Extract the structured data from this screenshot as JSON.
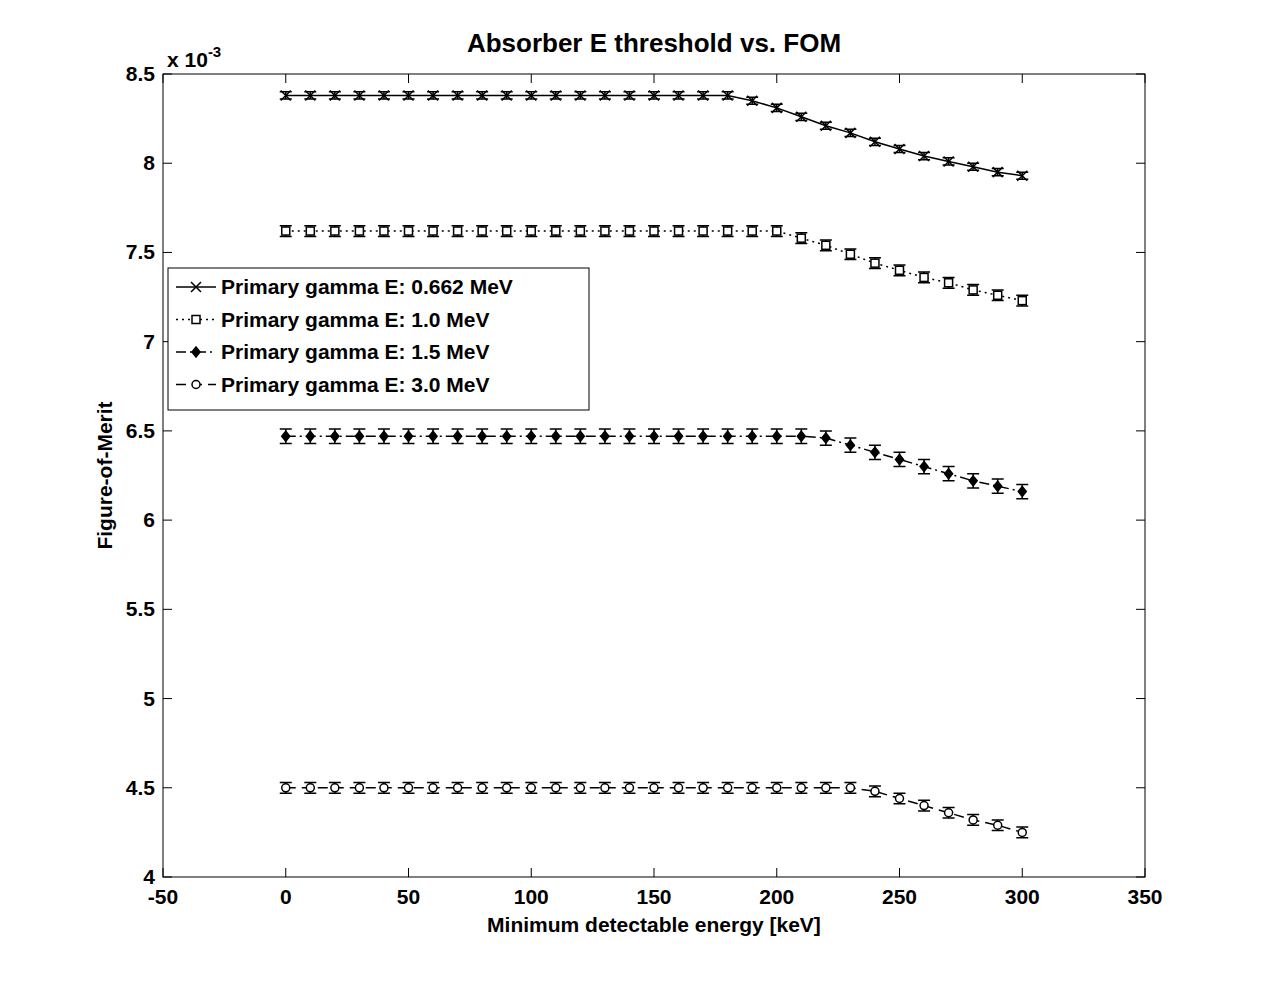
{
  "chart_data": {
    "type": "line",
    "title": "Absorber E threshold vs. FOM",
    "x_label": "Minimum detectable energy [keV]",
    "y_label": "Figure-of-Merit",
    "annotations": [
      {
        "text": "x 10",
        "superscript": "-3"
      }
    ],
    "x": [
      0,
      10,
      20,
      30,
      40,
      50,
      60,
      70,
      80,
      90,
      100,
      110,
      120,
      130,
      140,
      150,
      160,
      170,
      180,
      190,
      200,
      210,
      220,
      230,
      240,
      250,
      260,
      270,
      280,
      290,
      300
    ],
    "xlim": [
      -50,
      350
    ],
    "xticks": [
      -50,
      0,
      50,
      100,
      150,
      200,
      250,
      300,
      350
    ],
    "ylim": [
      4,
      8.5
    ],
    "yticks": [
      4,
      4.5,
      5,
      5.5,
      6,
      6.5,
      7,
      7.5,
      8,
      8.5
    ],
    "legend": "left",
    "grid": false,
    "series": [
      {
        "name": "Primary gamma E: 0.662 MeV",
        "color": "#000000",
        "marker": "x",
        "line_style": "solid",
        "values": [
          8.38,
          8.38,
          8.38,
          8.38,
          8.38,
          8.38,
          8.38,
          8.38,
          8.38,
          8.38,
          8.38,
          8.38,
          8.38,
          8.38,
          8.38,
          8.38,
          8.38,
          8.38,
          8.38,
          8.35,
          8.31,
          8.26,
          8.21,
          8.17,
          8.12,
          8.08,
          8.04,
          8.01,
          7.98,
          7.95,
          7.93
        ],
        "errors": [
          0.02,
          0.02,
          0.02,
          0.02,
          0.02,
          0.02,
          0.02,
          0.02,
          0.02,
          0.02,
          0.02,
          0.02,
          0.02,
          0.02,
          0.02,
          0.02,
          0.02,
          0.02,
          0.02,
          0.02,
          0.02,
          0.02,
          0.02,
          0.02,
          0.02,
          0.02,
          0.02,
          0.02,
          0.02,
          0.02,
          0.02
        ]
      },
      {
        "name": "Primary gamma E: 1.0 MeV",
        "color": "#000000",
        "marker": "square",
        "line_style": "dotted",
        "values": [
          7.62,
          7.62,
          7.62,
          7.62,
          7.62,
          7.62,
          7.62,
          7.62,
          7.62,
          7.62,
          7.62,
          7.62,
          7.62,
          7.62,
          7.62,
          7.62,
          7.62,
          7.62,
          7.62,
          7.62,
          7.62,
          7.58,
          7.54,
          7.49,
          7.44,
          7.4,
          7.36,
          7.33,
          7.29,
          7.26,
          7.23
        ],
        "errors": [
          0.03,
          0.03,
          0.03,
          0.03,
          0.03,
          0.03,
          0.03,
          0.03,
          0.03,
          0.03,
          0.03,
          0.03,
          0.03,
          0.03,
          0.03,
          0.03,
          0.03,
          0.03,
          0.03,
          0.03,
          0.03,
          0.03,
          0.03,
          0.03,
          0.03,
          0.03,
          0.03,
          0.03,
          0.03,
          0.03,
          0.03
        ]
      },
      {
        "name": "Primary gamma E: 1.5 MeV",
        "color": "#000000",
        "marker": "diamond",
        "line_style": "dashdot",
        "values": [
          6.47,
          6.47,
          6.47,
          6.47,
          6.47,
          6.47,
          6.47,
          6.47,
          6.47,
          6.47,
          6.47,
          6.47,
          6.47,
          6.47,
          6.47,
          6.47,
          6.47,
          6.47,
          6.47,
          6.47,
          6.47,
          6.47,
          6.46,
          6.42,
          6.38,
          6.34,
          6.3,
          6.26,
          6.22,
          6.19,
          6.16
        ],
        "errors": [
          0.04,
          0.04,
          0.04,
          0.04,
          0.04,
          0.04,
          0.04,
          0.04,
          0.04,
          0.04,
          0.04,
          0.04,
          0.04,
          0.04,
          0.04,
          0.04,
          0.04,
          0.04,
          0.04,
          0.04,
          0.04,
          0.04,
          0.04,
          0.04,
          0.04,
          0.04,
          0.04,
          0.04,
          0.04,
          0.04,
          0.04
        ]
      },
      {
        "name": "Primary gamma E: 3.0 MeV",
        "color": "#000000",
        "marker": "circle",
        "line_style": "dashed",
        "values": [
          4.5,
          4.5,
          4.5,
          4.5,
          4.5,
          4.5,
          4.5,
          4.5,
          4.5,
          4.5,
          4.5,
          4.5,
          4.5,
          4.5,
          4.5,
          4.5,
          4.5,
          4.5,
          4.5,
          4.5,
          4.5,
          4.5,
          4.5,
          4.5,
          4.48,
          4.44,
          4.4,
          4.36,
          4.32,
          4.29,
          4.25
        ],
        "errors": [
          0.03,
          0.03,
          0.03,
          0.03,
          0.03,
          0.03,
          0.03,
          0.03,
          0.03,
          0.03,
          0.03,
          0.03,
          0.03,
          0.03,
          0.03,
          0.03,
          0.03,
          0.03,
          0.03,
          0.03,
          0.03,
          0.03,
          0.03,
          0.03,
          0.03,
          0.03,
          0.03,
          0.03,
          0.03,
          0.03,
          0.03
        ]
      }
    ]
  }
}
